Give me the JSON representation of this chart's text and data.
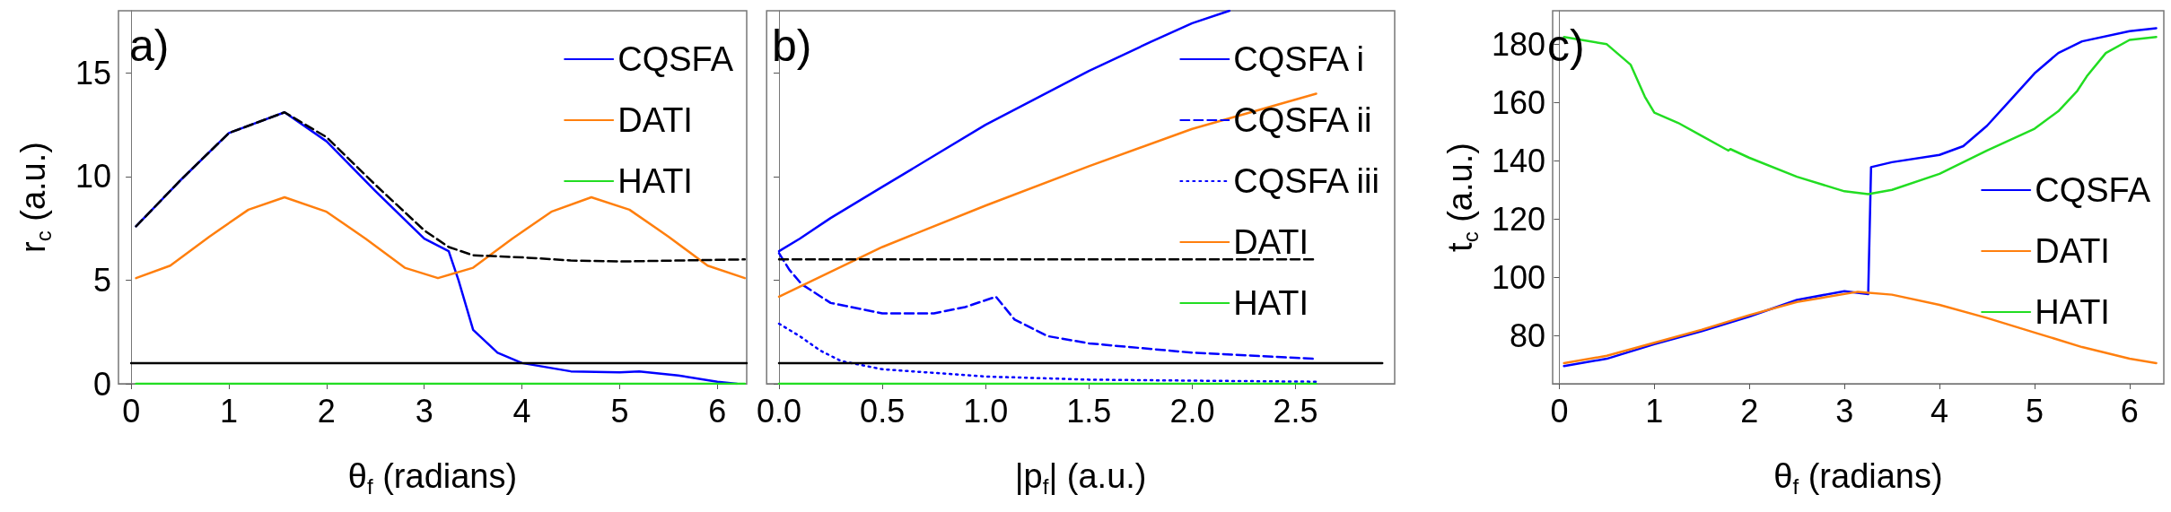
{
  "chart_data": [
    {
      "type": "line",
      "xlabel": "θ$_{f}$ (radians)",
      "ylabel": "r$_{c}$ (a.u.)",
      "annotations": [
        "a)"
      ],
      "legend": "top right",
      "marker": "none",
      "xlim": [
        -0.13,
        6.3
      ],
      "xticks": [
        0,
        1,
        2,
        3,
        4,
        5,
        6
      ],
      "ylim": [
        0,
        18
      ],
      "yticks": [
        0,
        5,
        10,
        15
      ],
      "series": [
        {
          "name": "CQSFA",
          "color": "#0000ff",
          "line_style": "solid",
          "x": [
            0.05,
            0.5,
            1.0,
            1.57,
            2.0,
            2.5,
            3.0,
            3.25,
            3.35,
            3.5,
            3.75,
            4.0,
            4.5,
            5.0,
            5.2,
            5.6,
            6.0,
            6.2
          ],
          "values": [
            7.6,
            9.8,
            12.1,
            13.1,
            11.7,
            9.3,
            7.0,
            6.4,
            5.0,
            2.6,
            1.5,
            1.0,
            0.6,
            0.55,
            0.6,
            0.4,
            0.1,
            0.0
          ]
        },
        {
          "name": "DATI",
          "color": "#ff7f0e",
          "line_style": "solid",
          "x": [
            0.05,
            0.4,
            0.8,
            1.2,
            1.57,
            2.0,
            2.4,
            2.8,
            3.14,
            3.5,
            3.9,
            4.3,
            4.71,
            5.1,
            5.5,
            5.9,
            6.28
          ],
          "values": [
            5.1,
            5.7,
            7.1,
            8.4,
            9.0,
            8.3,
            7.0,
            5.6,
            5.1,
            5.6,
            7.0,
            8.3,
            9.0,
            8.4,
            7.1,
            5.7,
            5.1
          ]
        },
        {
          "name": "HATI",
          "color": "#22dd22",
          "line_style": "solid",
          "x": [
            0.05,
            6.28
          ],
          "values": [
            0,
            0
          ]
        },
        {
          "color": "#000000",
          "line_style": "dashed",
          "x": [
            0.05,
            0.5,
            1.0,
            1.57,
            2.0,
            2.5,
            3.0,
            3.25,
            3.5,
            4.0,
            4.5,
            5.0,
            6.28
          ],
          "values": [
            7.6,
            9.8,
            12.1,
            13.1,
            11.9,
            9.6,
            7.4,
            6.6,
            6.2,
            6.1,
            5.95,
            5.9,
            6.0
          ]
        },
        {
          "color": "#000000",
          "line_style": "solid",
          "x": [
            0,
            6.3
          ],
          "values": [
            1.0,
            1.0
          ]
        }
      ]
    },
    {
      "type": "line",
      "xlabel": "|p$_{f}$| (a.u.)",
      "annotations": [
        "b)"
      ],
      "legend": "top right",
      "marker": "none",
      "tick_labels": "x",
      "xlim": [
        -0.06,
        2.98
      ],
      "xticks": [
        {
          "value": 0,
          "label": "0.0"
        },
        0.5,
        {
          "value": 1,
          "label": "1.0"
        },
        1.5,
        {
          "value": 2,
          "label": "2.0"
        },
        2.5
      ],
      "ylim": [
        0,
        18
      ],
      "yticks": [
        {
          "value": 0,
          "label": null
        },
        {
          "value": 5,
          "label": null
        },
        {
          "value": 10,
          "label": null
        },
        {
          "value": 15,
          "label": null
        }
      ],
      "series": [
        {
          "name": "CQSFA i",
          "color": "#0000ff",
          "line_style": "solid",
          "x": [
            0,
            0.1,
            0.25,
            0.5,
            0.75,
            1.0,
            1.25,
            1.5,
            1.8,
            2.0,
            2.18
          ],
          "values": [
            6.4,
            7.0,
            8.0,
            9.5,
            11.0,
            12.5,
            13.8,
            15.1,
            16.5,
            17.4,
            18.0
          ]
        },
        {
          "name": "CQSFA ii",
          "color": "#0000ff",
          "line_style": "dashed",
          "x": [
            0,
            0.05,
            0.11,
            0.25,
            0.5,
            0.75,
            0.9,
            1.05,
            1.14,
            1.3,
            1.5,
            2.0,
            2.6
          ],
          "values": [
            6.3,
            5.5,
            4.8,
            3.9,
            3.4,
            3.4,
            3.7,
            4.2,
            3.1,
            2.3,
            1.95,
            1.5,
            1.2
          ]
        },
        {
          "name": "CQSFA iii",
          "color": "#0000ff",
          "line_style": "dotted",
          "x": [
            0,
            0.1,
            0.2,
            0.3,
            0.5,
            1.0,
            1.5,
            2.0,
            2.6
          ],
          "values": [
            2.9,
            2.3,
            1.6,
            1.1,
            0.7,
            0.35,
            0.2,
            0.15,
            0.1
          ]
        },
        {
          "name": "DATI",
          "color": "#ff7f0e",
          "line_style": "solid",
          "x": [
            0,
            0.5,
            1.0,
            1.5,
            2.0,
            2.6
          ],
          "values": [
            4.2,
            6.6,
            8.6,
            10.5,
            12.3,
            14.0
          ]
        },
        {
          "name": "HATI",
          "color": "#22dd22",
          "line_style": "solid",
          "x": [
            0,
            2.6
          ],
          "values": [
            0,
            0
          ]
        },
        {
          "color": "#000000",
          "line_style": "dashed",
          "x": [
            0,
            2.6
          ],
          "values": [
            6.0,
            6.0
          ]
        },
        {
          "color": "#000000",
          "line_style": "solid",
          "x": [
            0,
            2.92
          ],
          "values": [
            1.0,
            1.0
          ]
        }
      ]
    },
    {
      "type": "line",
      "xlabel": "θ$_{f}$ (radians)",
      "ylabel": "t$_{c}$ (a.u.)",
      "annotations": [
        "c)"
      ],
      "legend": "right",
      "marker": "none",
      "xlim": [
        -0.07,
        6.36
      ],
      "xticks": [
        0,
        1,
        2,
        3,
        4,
        5,
        6
      ],
      "ylim": [
        63.4,
        191.5
      ],
      "yticks": [
        80,
        100,
        120,
        140,
        160,
        180
      ],
      "series": [
        {
          "name": "CQSFA",
          "color": "#0000ff",
          "line_style": "solid",
          "x": [
            0.05,
            0.5,
            1.0,
            1.5,
            2.0,
            2.5,
            3.0,
            3.25,
            3.28,
            3.5,
            4.0,
            4.25,
            4.5,
            4.75,
            5.0,
            5.25,
            5.5,
            6.0,
            6.28
          ],
          "values": [
            69.5,
            72,
            77,
            81.5,
            86.5,
            92.2,
            95.2,
            94.2,
            137.8,
            139.5,
            142,
            145,
            152,
            161,
            170,
            177,
            181,
            184.5,
            185.5
          ]
        },
        {
          "name": "DATI",
          "color": "#ff7f0e",
          "line_style": "solid",
          "x": [
            0.05,
            0.5,
            1.0,
            1.5,
            2.0,
            2.5,
            3.14,
            3.5,
            4.0,
            4.5,
            5.0,
            5.5,
            6.0,
            6.28
          ],
          "values": [
            70.5,
            73,
            77.5,
            82,
            87,
            91.5,
            95,
            94,
            90.5,
            86,
            81,
            76,
            72,
            70.5
          ]
        },
        {
          "name": "HATI",
          "color": "#22dd22",
          "line_style": "solid",
          "x": [
            0.05,
            0.5,
            0.75,
            0.9,
            1.0,
            1.25,
            1.5,
            1.75,
            1.78,
            1.8,
            2.0,
            2.5,
            3.0,
            3.25,
            3.5,
            4.0,
            4.5,
            5.0,
            5.25,
            5.45,
            5.55,
            5.75,
            6.0,
            6.28
          ],
          "values": [
            182.5,
            180,
            173,
            162,
            156.5,
            153,
            148.5,
            144,
            143.5,
            144,
            141,
            134.5,
            129.5,
            128.5,
            130,
            135.5,
            143.5,
            151,
            157,
            164,
            169,
            177,
            181.5,
            182.5
          ]
        }
      ]
    }
  ]
}
